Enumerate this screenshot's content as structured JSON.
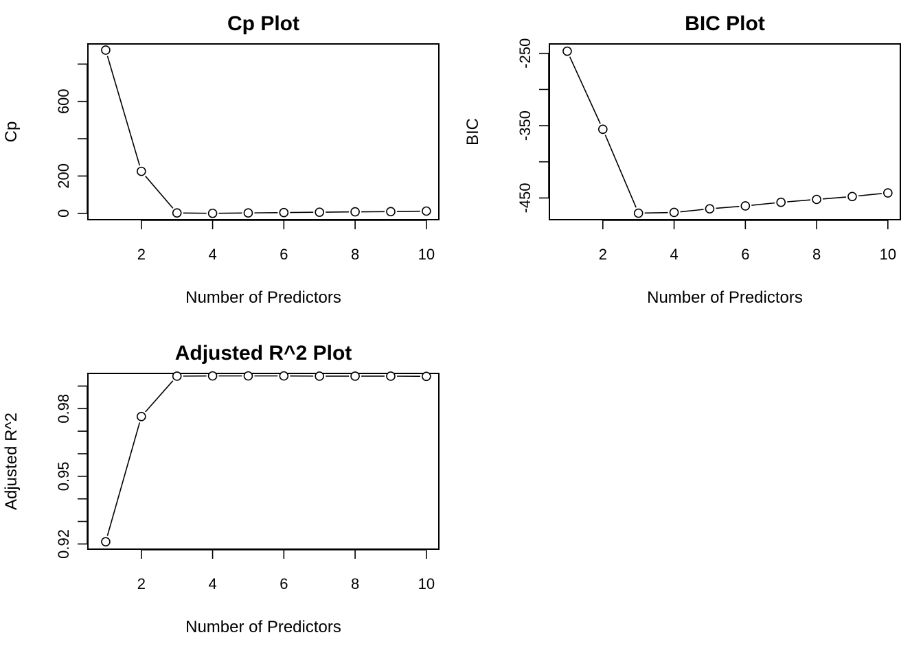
{
  "chart_data": [
    {
      "type": "line",
      "title": "Cp Plot",
      "xlabel": "Number of Predictors",
      "ylabel": "Cp",
      "x": [
        1,
        2,
        3,
        4,
        5,
        6,
        7,
        8,
        9,
        10
      ],
      "values": [
        875,
        225,
        2,
        0,
        2,
        4,
        6,
        8,
        9,
        12
      ],
      "xlim": [
        0.5,
        10.35
      ],
      "ylim": [
        -34,
        908
      ],
      "xticks": [
        2,
        4,
        6,
        8,
        10
      ],
      "xtick_labels": [
        "2",
        "4",
        "6",
        "8",
        "10"
      ],
      "yticks": [
        0,
        200,
        400,
        600,
        800
      ],
      "ytick_labels": [
        "0",
        "200",
        "",
        "600",
        ""
      ],
      "marker": "open-circle",
      "grid": false
    },
    {
      "type": "line",
      "title": "BIC Plot",
      "xlabel": "Number of Predictors",
      "ylabel": "BIC",
      "x": [
        1,
        2,
        3,
        4,
        5,
        6,
        7,
        8,
        9,
        10
      ],
      "values": [
        -247,
        -355,
        -471,
        -470,
        -465,
        -461,
        -456,
        -452,
        -448,
        -443
      ],
      "xlim": [
        0.5,
        10.35
      ],
      "ylim": [
        -480,
        -237
      ],
      "xticks": [
        2,
        4,
        6,
        8,
        10
      ],
      "xtick_labels": [
        "2",
        "4",
        "6",
        "8",
        "10"
      ],
      "yticks": [
        -450,
        -400,
        -350,
        -300,
        -250
      ],
      "ytick_labels": [
        "-450",
        "",
        "-350",
        "",
        "-250"
      ],
      "marker": "open-circle",
      "grid": false
    },
    {
      "type": "line",
      "title": "Adjusted R^2 Plot",
      "xlabel": "Number of Predictors",
      "ylabel": "Adjusted R^2",
      "x": [
        1,
        2,
        3,
        4,
        5,
        6,
        7,
        8,
        9,
        10
      ],
      "values": [
        0.921,
        0.9765,
        0.9944,
        0.9945,
        0.9945,
        0.9945,
        0.9944,
        0.9944,
        0.9944,
        0.9943
      ],
      "xlim": [
        0.5,
        10.35
      ],
      "ylim": [
        0.9177,
        0.9956
      ],
      "xticks": [
        2,
        4,
        6,
        8,
        10
      ],
      "xtick_labels": [
        "2",
        "4",
        "6",
        "8",
        "10"
      ],
      "yticks": [
        0.92,
        0.93,
        0.94,
        0.95,
        0.96,
        0.97,
        0.98,
        0.99
      ],
      "ytick_labels": [
        "0.92",
        "",
        "",
        "0.95",
        "",
        "",
        "0.98",
        ""
      ],
      "marker": "open-circle",
      "grid": false
    }
  ]
}
